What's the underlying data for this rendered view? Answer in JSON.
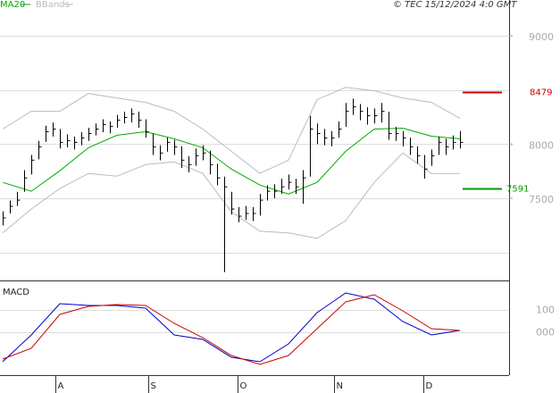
{
  "chart_data": [
    {
      "type": "ohlc",
      "note": "© TEC 15/12/2024 4:0 GMT",
      "x": [
        0,
        1,
        2,
        3,
        4,
        5,
        6,
        7,
        8,
        9,
        10,
        11,
        12,
        13,
        14,
        15,
        16,
        17,
        18,
        19,
        20,
        21,
        22,
        23,
        24,
        25,
        26,
        27,
        28,
        29,
        30,
        31,
        32,
        33,
        34,
        35,
        36,
        37,
        38,
        39,
        40,
        41,
        42,
        43,
        44,
        45,
        46,
        47,
        48,
        49,
        50,
        51,
        52,
        53,
        54,
        55,
        56,
        57,
        58,
        59,
        60,
        61,
        62,
        63,
        64
      ],
      "close": [
        7319,
        7426,
        7483,
        7688,
        7852,
        7975,
        8114,
        8139,
        8016,
        8032,
        8016,
        8057,
        8098,
        8139,
        8180,
        8164,
        8221,
        8246,
        8278,
        8221,
        8114,
        7975,
        7918,
        8016,
        7975,
        7852,
        7811,
        7893,
        7918,
        7811,
        7688,
        7606,
        7401,
        7335,
        7360,
        7360,
        7483,
        7565,
        7565,
        7606,
        7647,
        7606,
        7688,
        8139,
        8098,
        8057,
        8057,
        8139,
        8303,
        8344,
        8303,
        8262,
        8262,
        8303,
        8098,
        8098,
        8057,
        7975,
        7893,
        7770,
        7893,
        8016,
        7975,
        8016,
        8016
      ],
      "high": [
        7380,
        7480,
        7560,
        7760,
        7900,
        8030,
        8170,
        8200,
        8140,
        8090,
        8070,
        8110,
        8150,
        8190,
        8230,
        8210,
        8270,
        8300,
        8330,
        8300,
        8230,
        8100,
        7990,
        8060,
        8040,
        7980,
        7890,
        7960,
        7990,
        7940,
        7820,
        7700,
        7560,
        7420,
        7430,
        7420,
        7540,
        7620,
        7630,
        7680,
        7720,
        7680,
        7760,
        8260,
        8190,
        8140,
        8120,
        8210,
        8380,
        8420,
        8370,
        8340,
        8330,
        8380,
        8300,
        8160,
        8120,
        8060,
        7980,
        7900,
        7950,
        8070,
        8050,
        8080,
        8120
      ],
      "low": [
        7250,
        7360,
        7430,
        7560,
        7720,
        7860,
        8020,
        8070,
        7960,
        7970,
        7950,
        7990,
        8030,
        8080,
        8110,
        8100,
        8150,
        8190,
        8200,
        8150,
        8060,
        7900,
        7850,
        7930,
        7900,
        7780,
        7740,
        7800,
        7850,
        7720,
        7620,
        6819,
        7350,
        7280,
        7300,
        7290,
        7340,
        7480,
        7500,
        7540,
        7580,
        7540,
        7450,
        7700,
        8000,
        7990,
        7980,
        8060,
        8160,
        8270,
        8220,
        8180,
        8190,
        8200,
        8040,
        8030,
        7980,
        7900,
        7820,
        7680,
        7800,
        7900,
        7900,
        7950,
        7960
      ],
      "bar_color": "#000000",
      "series": [
        {
          "name": "MA20",
          "color": "#00aa00",
          "x": [
            0,
            4,
            8,
            12,
            16,
            20,
            24,
            28,
            32,
            36,
            40,
            44,
            48,
            52,
            56,
            60,
            64
          ],
          "values": [
            7647,
            7565,
            7754,
            7967,
            8082,
            8114,
            8049,
            7967,
            7770,
            7622,
            7540,
            7647,
            7934,
            8139,
            8147,
            8073,
            8049
          ]
        },
        {
          "name": "BBands",
          "color": "#bbbbbb",
          "x": [
            0,
            4,
            8,
            12,
            16,
            20,
            24,
            28,
            32,
            36,
            40,
            44,
            48,
            52,
            56,
            60,
            64
          ],
          "upper": [
            8139,
            8303,
            8303,
            8467,
            8426,
            8385,
            8303,
            8139,
            7934,
            7729,
            7852,
            8410,
            8524,
            8492,
            8426,
            8385,
            8237
          ],
          "lower": [
            7180,
            7401,
            7590,
            7729,
            7704,
            7811,
            7836,
            7729,
            7376,
            7196,
            7180,
            7130,
            7294,
            7647,
            7918,
            7729,
            7729
          ]
        }
      ],
      "levels": [
        {
          "value": 8479,
          "color": "#cc0000"
        },
        {
          "value": 7591,
          "color": "#009900"
        }
      ],
      "xlim": [
        -0.375,
        70.875
      ],
      "xticks": [
        {
          "value": 7.4,
          "label": "A"
        },
        {
          "value": 20.4,
          "label": "S"
        },
        {
          "value": 32.9,
          "label": "O"
        },
        {
          "value": 46.4,
          "label": "N"
        },
        {
          "value": 58.9,
          "label": "D"
        }
      ],
      "ylim": [
        6750,
        9330
      ],
      "yticks": [
        7500,
        8000,
        9000
      ],
      "grid_levels": [
        7000,
        7500,
        8000,
        8500,
        9000
      ]
    },
    {
      "type": "line",
      "title": "MACD",
      "x": [
        0,
        4,
        8,
        12,
        16,
        20,
        24,
        28,
        32,
        36,
        40,
        44,
        48,
        52,
        56,
        60,
        64
      ],
      "series": [
        {
          "color": "#0000cc",
          "values": [
            -132,
            -12,
            128,
            120,
            120,
            108,
            -12,
            -32,
            -112,
            -132,
            -52,
            88,
            176,
            148,
            48,
            -12,
            8
          ]
        },
        {
          "color": "#cc0000",
          "values": [
            -120,
            -72,
            80,
            116,
            124,
            120,
            40,
            -24,
            -104,
            -144,
            -104,
            16,
            136,
            168,
            96,
            16,
            8
          ]
        }
      ],
      "ylim": [
        -192,
        228
      ],
      "yticks": [
        100,
        {
          "value": 0,
          "label": "000"
        }
      ]
    }
  ]
}
